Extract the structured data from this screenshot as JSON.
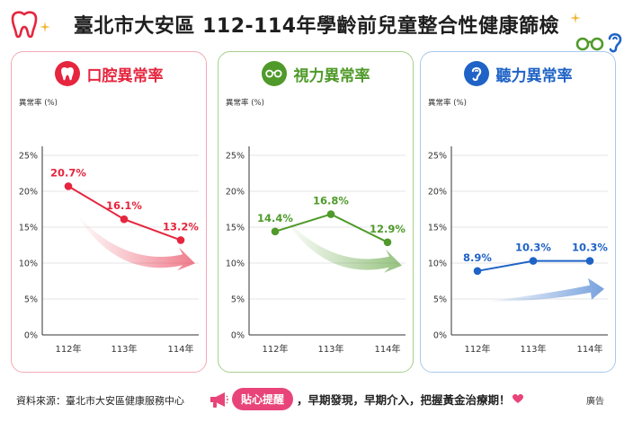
{
  "title": "臺北市大安區 112-114年學齡前兒童整合性健康篩檢",
  "colors": {
    "dental": "#e5263e",
    "vision": "#4f9a2a",
    "hearing": "#1f63c6",
    "tip": "#e8447a"
  },
  "icons": {
    "dental": "tooth-icon",
    "vision": "glasses-icon",
    "hearing": "ear-icon",
    "tip": "megaphone-icon"
  },
  "footer": {
    "source": "資料來源：臺北市大安區健康服務中心",
    "tip_badge": "貼心提醒",
    "tip_text": "，早期發現，早期介入，把握黃金治療期！",
    "ad": "廣告"
  },
  "chart_data": [
    {
      "type": "line",
      "title": "口腔異常率",
      "ylabel": "異常率 (%)",
      "categories": [
        "112年",
        "113年",
        "114年"
      ],
      "values": [
        20.7,
        16.1,
        13.2
      ],
      "labels": [
        "20.7%",
        "16.1%",
        "13.2%"
      ],
      "ylim": [
        0,
        25
      ],
      "yticks": [
        "0%",
        "5%",
        "10%",
        "15%",
        "20%",
        "25%"
      ],
      "trend": "down",
      "grid": true
    },
    {
      "type": "line",
      "title": "視力異常率",
      "ylabel": "異常率 (%)",
      "categories": [
        "112年",
        "113年",
        "114年"
      ],
      "values": [
        14.4,
        16.8,
        12.9
      ],
      "labels": [
        "14.4%",
        "16.8%",
        "12.9%"
      ],
      "ylim": [
        0,
        25
      ],
      "yticks": [
        "0%",
        "5%",
        "10%",
        "15%",
        "20%",
        "25%"
      ],
      "trend": "down",
      "grid": true
    },
    {
      "type": "line",
      "title": "聽力異常率",
      "ylabel": "異常率 (%)",
      "categories": [
        "112年",
        "113年",
        "114年"
      ],
      "values": [
        8.9,
        10.3,
        10.3
      ],
      "labels": [
        "8.9%",
        "10.3%",
        "10.3%"
      ],
      "ylim": [
        0,
        25
      ],
      "yticks": [
        "0%",
        "5%",
        "10%",
        "15%",
        "20%",
        "25%"
      ],
      "trend": "up",
      "grid": true
    }
  ]
}
